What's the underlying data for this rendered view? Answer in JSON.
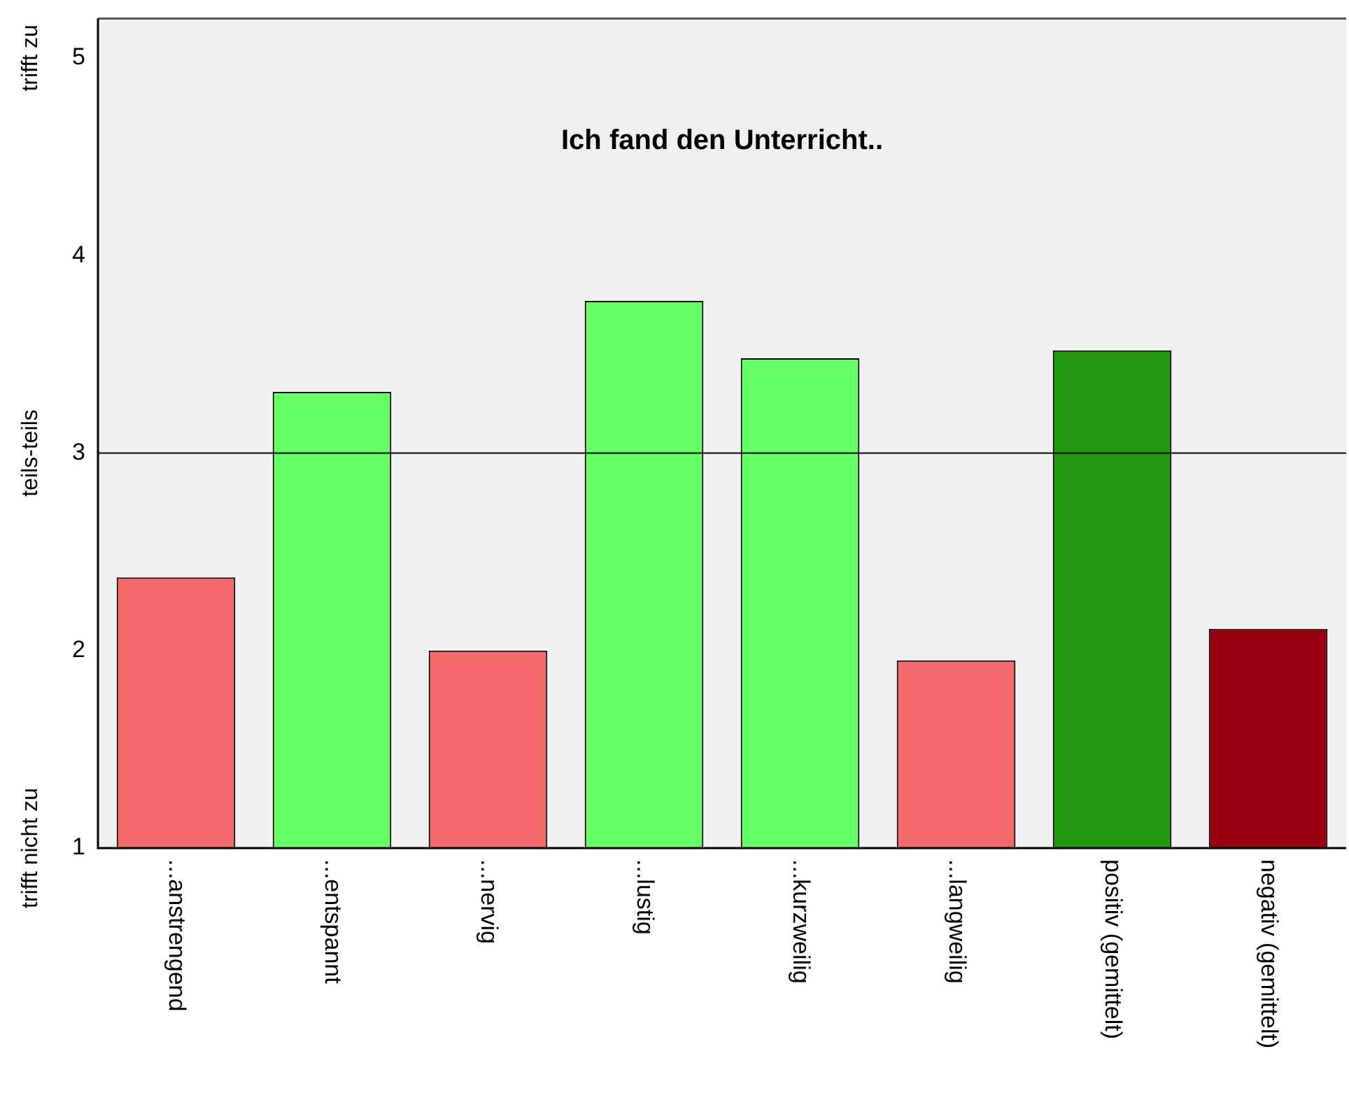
{
  "chart_data": {
    "type": "bar",
    "title": "Ich fand den Unterricht..",
    "categories": [
      "...anstrengend",
      "...entspannt",
      "...nervig",
      "...lustig",
      "...kurzweilig",
      "...langweilig",
      "positiv (gemittelt)",
      "negativ (gemittelt)"
    ],
    "values": [
      2.37,
      3.31,
      2.0,
      3.77,
      3.48,
      1.95,
      3.52,
      2.11
    ],
    "colors": [
      "#f46a6a",
      "#66ff66",
      "#f46a6a",
      "#66ff66",
      "#66ff66",
      "#f46a6a",
      "#229911",
      "#990011"
    ],
    "ylim": [
      1,
      5.2
    ],
    "yticks": [
      1,
      2,
      3,
      4,
      5
    ],
    "grid": false,
    "legend": false,
    "ref_lines": [
      {
        "axis": "y",
        "value": 3,
        "color": "#000000"
      }
    ],
    "annotations": [
      "trifft nicht zu",
      "teils-teils",
      "trifft zu"
    ]
  }
}
